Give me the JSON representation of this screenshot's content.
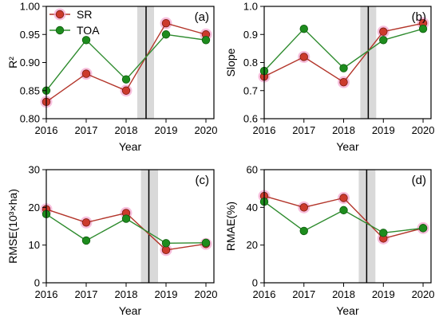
{
  "figure": {
    "axis_color": "#000000",
    "band_color": "#d9d9d9"
  },
  "chart_data": [
    {
      "panel_label": "(a)",
      "type": "line",
      "xlabel": "Year",
      "ylabel": "R²",
      "x": [
        2016,
        2017,
        2018,
        2019,
        2020
      ],
      "xlim": [
        2016,
        2020.2
      ],
      "xticks": [
        "2016",
        "2017",
        "2018",
        "2019",
        "2020"
      ],
      "ylim": [
        0.8,
        1.0
      ],
      "yticks": [
        "0.80",
        "0.85",
        "0.90",
        "0.95",
        "1.00"
      ],
      "grid": false,
      "legend": "top-left",
      "shaded_band": [
        2018.28,
        2018.7
      ],
      "vertical_line": 2018.5,
      "series": [
        {
          "name": "SR",
          "color": "#cc3a2c",
          "line_color": "#b3352a",
          "edge_color": "#7a1c12",
          "halo_color": "#f6a9d1",
          "values": [
            0.83,
            0.88,
            0.85,
            0.97,
            0.95
          ]
        },
        {
          "name": "TOA",
          "color": "#1d8c1d",
          "line_color": "#2e8b2e",
          "edge_color": "#0f5c0f",
          "values": [
            0.85,
            0.94,
            0.87,
            0.95,
            0.94
          ]
        }
      ]
    },
    {
      "panel_label": "(b)",
      "type": "line",
      "xlabel": "Year",
      "ylabel": "Slope",
      "x": [
        2016,
        2017,
        2018,
        2019,
        2020
      ],
      "xlim": [
        2016,
        2020.2
      ],
      "xticks": [
        "2016",
        "2017",
        "2018",
        "2019",
        "2020"
      ],
      "ylim": [
        0.6,
        1.0
      ],
      "yticks": [
        "0.6",
        "0.7",
        "0.8",
        "0.9",
        "1.0"
      ],
      "grid": false,
      "shaded_band": [
        2018.42,
        2018.82
      ],
      "vertical_line": 2018.62,
      "series": [
        {
          "color": "#cc3a2c",
          "line_color": "#b3352a",
          "edge_color": "#7a1c12",
          "halo_color": "#f6a9d1",
          "values": [
            0.75,
            0.82,
            0.73,
            0.91,
            0.94
          ]
        },
        {
          "color": "#1d8c1d",
          "line_color": "#2e8b2e",
          "edge_color": "#0f5c0f",
          "values": [
            0.77,
            0.92,
            0.78,
            0.88,
            0.92
          ]
        }
      ]
    },
    {
      "panel_label": "(c)",
      "type": "line",
      "xlabel": "Year",
      "ylabel": "RMSE(10³×ha)",
      "x": [
        2016,
        2017,
        2018,
        2019,
        2020
      ],
      "xlim": [
        2016,
        2020.2
      ],
      "xticks": [
        "2016",
        "2017",
        "2018",
        "2019",
        "2020"
      ],
      "ylim": [
        0,
        30
      ],
      "yticks": [
        "0",
        "10",
        "20",
        "30"
      ],
      "grid": false,
      "shaded_band": [
        2018.37,
        2018.8
      ],
      "vertical_line": 2018.57,
      "series": [
        {
          "color": "#cc3a2c",
          "line_color": "#b3352a",
          "edge_color": "#7a1c12",
          "halo_color": "#f6a9d1",
          "values": [
            19.5,
            16.0,
            18.5,
            8.7,
            10.3
          ]
        },
        {
          "color": "#1d8c1d",
          "line_color": "#2e8b2e",
          "edge_color": "#0f5c0f",
          "values": [
            18.2,
            11.2,
            17.0,
            10.5,
            10.6
          ]
        }
      ]
    },
    {
      "panel_label": "(d)",
      "type": "line",
      "xlabel": "Year",
      "ylabel": "RMAE(%)",
      "x": [
        2016,
        2017,
        2018,
        2019,
        2020
      ],
      "xlim": [
        2016,
        2020.2
      ],
      "xticks": [
        "2016",
        "2017",
        "2018",
        "2019",
        "2020"
      ],
      "ylim": [
        0,
        60
      ],
      "yticks": [
        "0",
        "20",
        "40",
        "60"
      ],
      "grid": false,
      "shaded_band": [
        2018.38,
        2018.8
      ],
      "vertical_line": 2018.58,
      "series": [
        {
          "color": "#cc3a2c",
          "line_color": "#b3352a",
          "edge_color": "#7a1c12",
          "halo_color": "#f6a9d1",
          "values": [
            46,
            40,
            45,
            23.5,
            29
          ]
        },
        {
          "color": "#1d8c1d",
          "line_color": "#2e8b2e",
          "edge_color": "#0f5c0f",
          "values": [
            43,
            27.5,
            38.5,
            26.5,
            29
          ]
        }
      ]
    }
  ]
}
